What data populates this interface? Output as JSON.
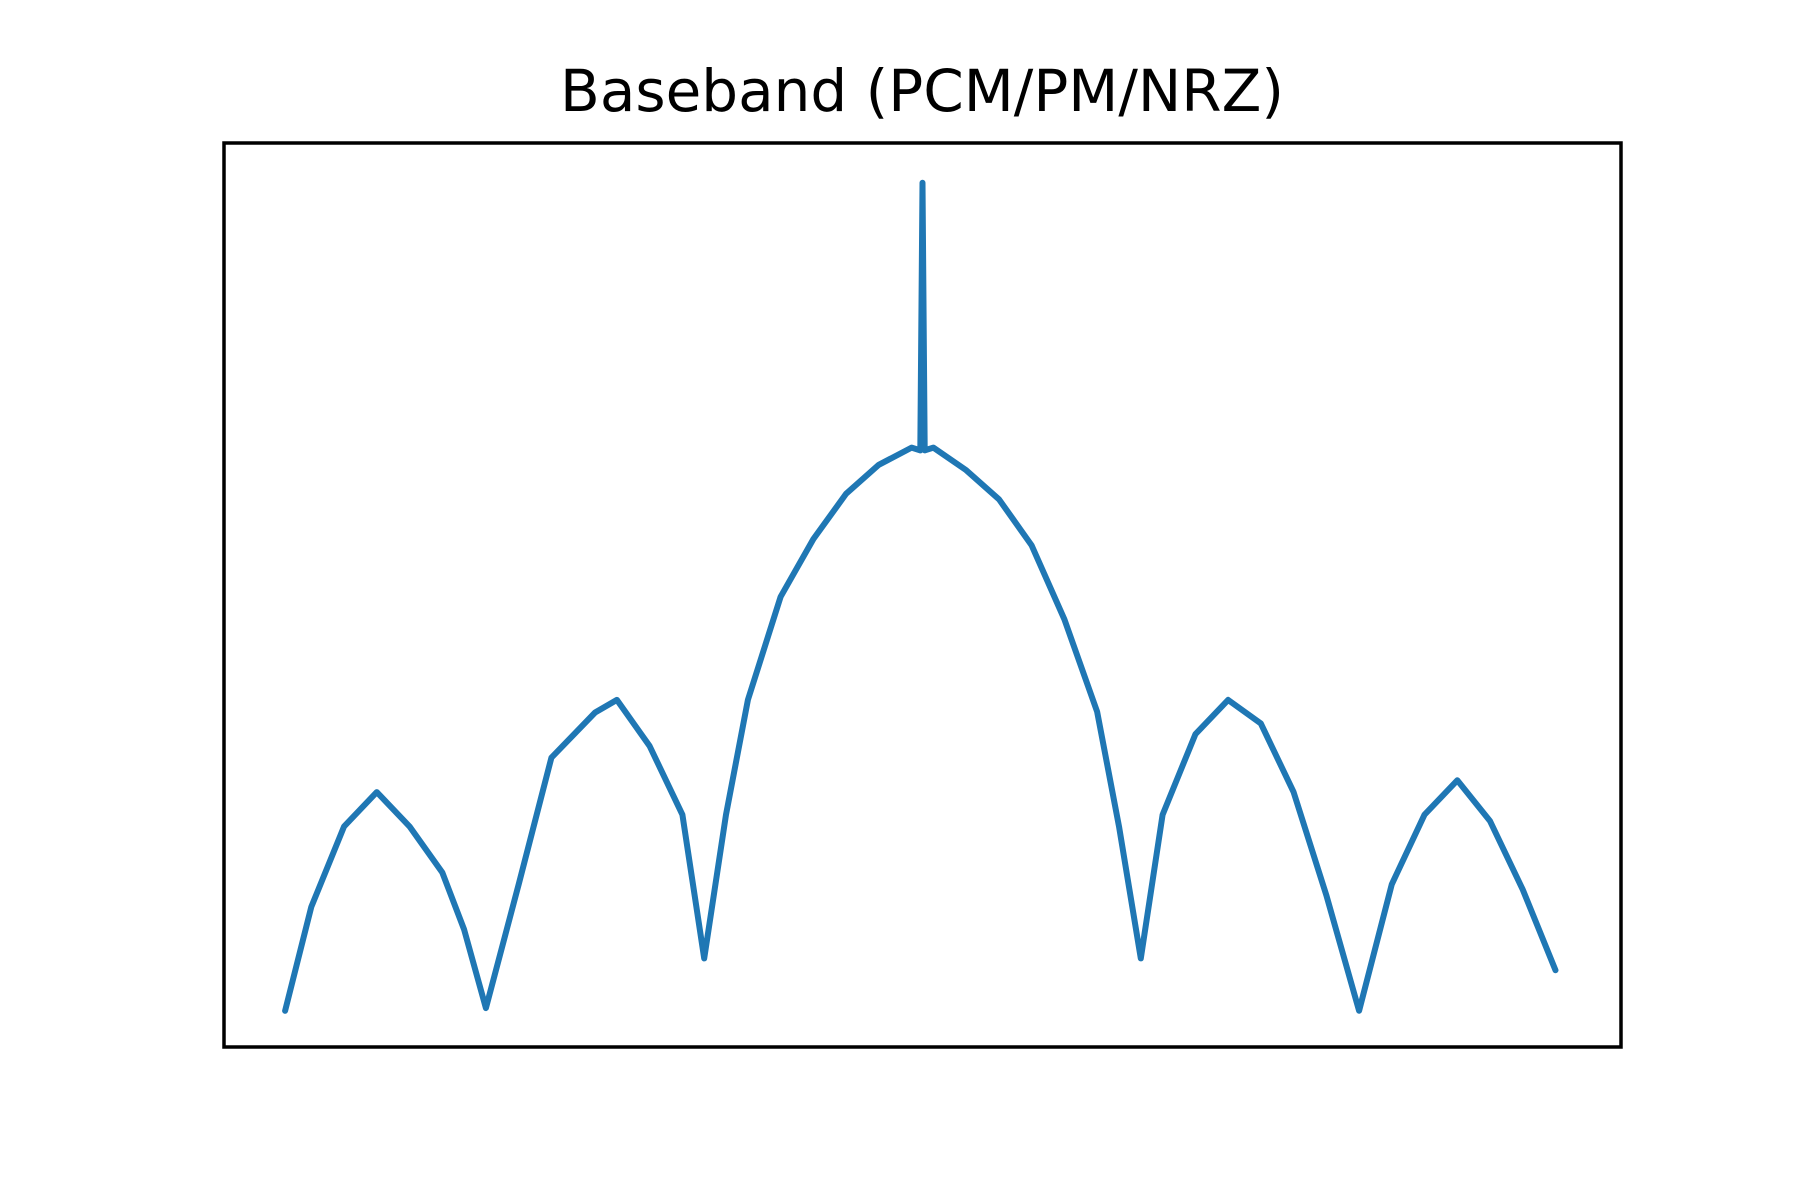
{
  "chart_data": {
    "type": "line",
    "title": "Baseband (PCM/PM/NRZ)",
    "x": [
      -2.92,
      -2.8,
      -2.65,
      -2.5,
      -2.35,
      -2.2,
      -2.1,
      -2.0,
      -1.85,
      -1.7,
      -1.5,
      -1.4,
      -1.25,
      -1.1,
      -1.0,
      -0.9,
      -0.8,
      -0.65,
      -0.5,
      -0.35,
      -0.2,
      -0.05,
      -0.01,
      0,
      0.01,
      0.05,
      0.2,
      0.35,
      0.5,
      0.65,
      0.8,
      0.9,
      1.0,
      1.1,
      1.25,
      1.4,
      1.55,
      1.7,
      1.85,
      2.0,
      2.15,
      2.3,
      2.45,
      2.6,
      2.75,
      2.9
    ],
    "series": [
      {
        "color": "#1f77b4",
        "values": [
          4,
          15.5,
          24.4,
          28.2,
          24.4,
          19.3,
          13,
          4.3,
          18,
          32,
          37,
          38.4,
          33.3,
          25.7,
          9.8,
          25.7,
          38.4,
          49.8,
          56.2,
          61.2,
          64.4,
          66.3,
          66,
          95.6,
          66,
          66.3,
          63.8,
          60.6,
          55.5,
          47.3,
          37.1,
          24.4,
          9.8,
          25.7,
          34.6,
          38.4,
          35.8,
          28.2,
          16.8,
          4,
          18,
          25.7,
          29.5,
          25,
          17.4,
          8.5
        ]
      }
    ],
    "xlim": [
      -3.2,
      3.2
    ],
    "ylim": [
      0,
      100
    ]
  }
}
